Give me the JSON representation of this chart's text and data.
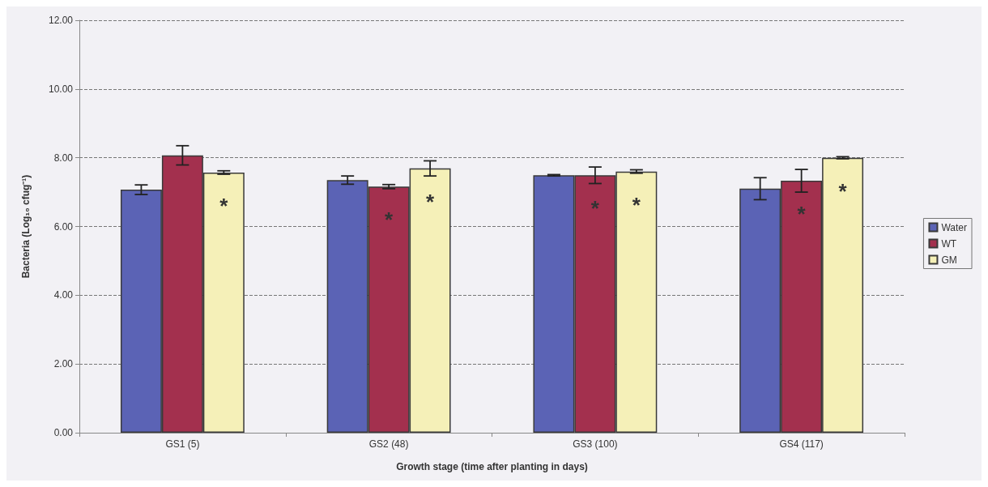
{
  "chart_data": {
    "type": "bar",
    "xlabel": "Growth stage (time after planting in days)",
    "ylabel": "Bacteria (Log₁₀ cfug⁻¹)",
    "categories": [
      "GS1 (5)",
      "GS2 (48)",
      "GS3 (100)",
      "GS4 (117)"
    ],
    "series": [
      {
        "name": "Water",
        "color": "#5b63b5",
        "values": [
          7.07,
          7.35,
          7.49,
          7.1
        ],
        "errors": [
          0.14,
          0.12,
          0.02,
          0.32
        ],
        "value_labels": [
          null,
          null,
          null,
          null
        ]
      },
      {
        "name": "WT",
        "color": "#a3304e",
        "values": [
          8.07,
          7.16,
          7.49,
          7.33
        ],
        "errors": [
          0.28,
          0.06,
          0.24,
          0.33
        ],
        "value_labels": [
          null,
          "*",
          "*",
          "*"
        ]
      },
      {
        "name": "GM",
        "color": "#f5f0b8",
        "values": [
          7.57,
          7.69,
          7.6,
          8.0
        ],
        "errors": [
          0.05,
          0.22,
          0.05,
          0.03
        ],
        "value_labels": [
          "*",
          "*",
          "*",
          "*"
        ]
      }
    ],
    "ylim": [
      0,
      12
    ],
    "yticks": [
      {
        "value": 0,
        "label": "0.00"
      },
      {
        "value": 2,
        "label": "2.00"
      },
      {
        "value": 4,
        "label": "4.00"
      },
      {
        "value": 6,
        "label": "6.00"
      },
      {
        "value": 8,
        "label": "8.00"
      },
      {
        "value": 10,
        "label": "10.00"
      },
      {
        "value": 12,
        "label": "12.00"
      }
    ],
    "grid": "y",
    "legend": "right"
  }
}
